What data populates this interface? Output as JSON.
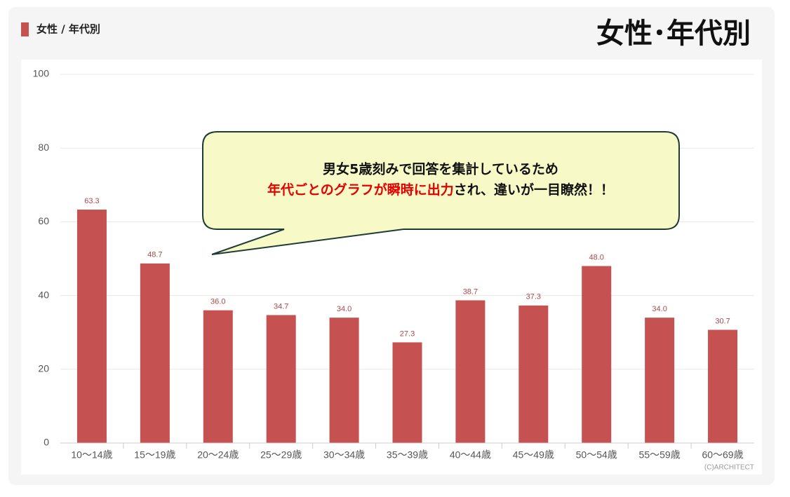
{
  "chart_data": {
    "type": "bar",
    "title": "女性･年代別",
    "categories": [
      "10〜14歳",
      "15〜19歳",
      "20〜24歳",
      "25〜29歳",
      "30〜34歳",
      "35〜39歳",
      "40〜44歳",
      "45〜49歳",
      "50〜54歳",
      "55〜59歳",
      "60〜69歳"
    ],
    "series": [
      {
        "name": "女性 / 年代別",
        "color": "#c65151",
        "values": [
          63.3,
          48.7,
          36.0,
          34.7,
          34.0,
          27.3,
          38.7,
          37.3,
          48.0,
          34.0,
          30.7
        ],
        "value_labels": [
          "63.3",
          "48.7",
          "36.0",
          "34.7",
          "34.0",
          "27.3",
          "38.7",
          "37.3",
          "48.0",
          "34.0",
          "30.7"
        ]
      }
    ],
    "ylim": [
      0,
      100
    ],
    "yticks": [
      0,
      20,
      40,
      60,
      80,
      100
    ],
    "grid": true,
    "annotation": {
      "line1": "男女5歳刻みで回答を集計しているため",
      "line2_highlight": "年代ごとのグラフが瞬時に出力",
      "line2_rest": "され、違いが一目瞭然！！"
    },
    "credit": "(C)ARCHITECT"
  }
}
